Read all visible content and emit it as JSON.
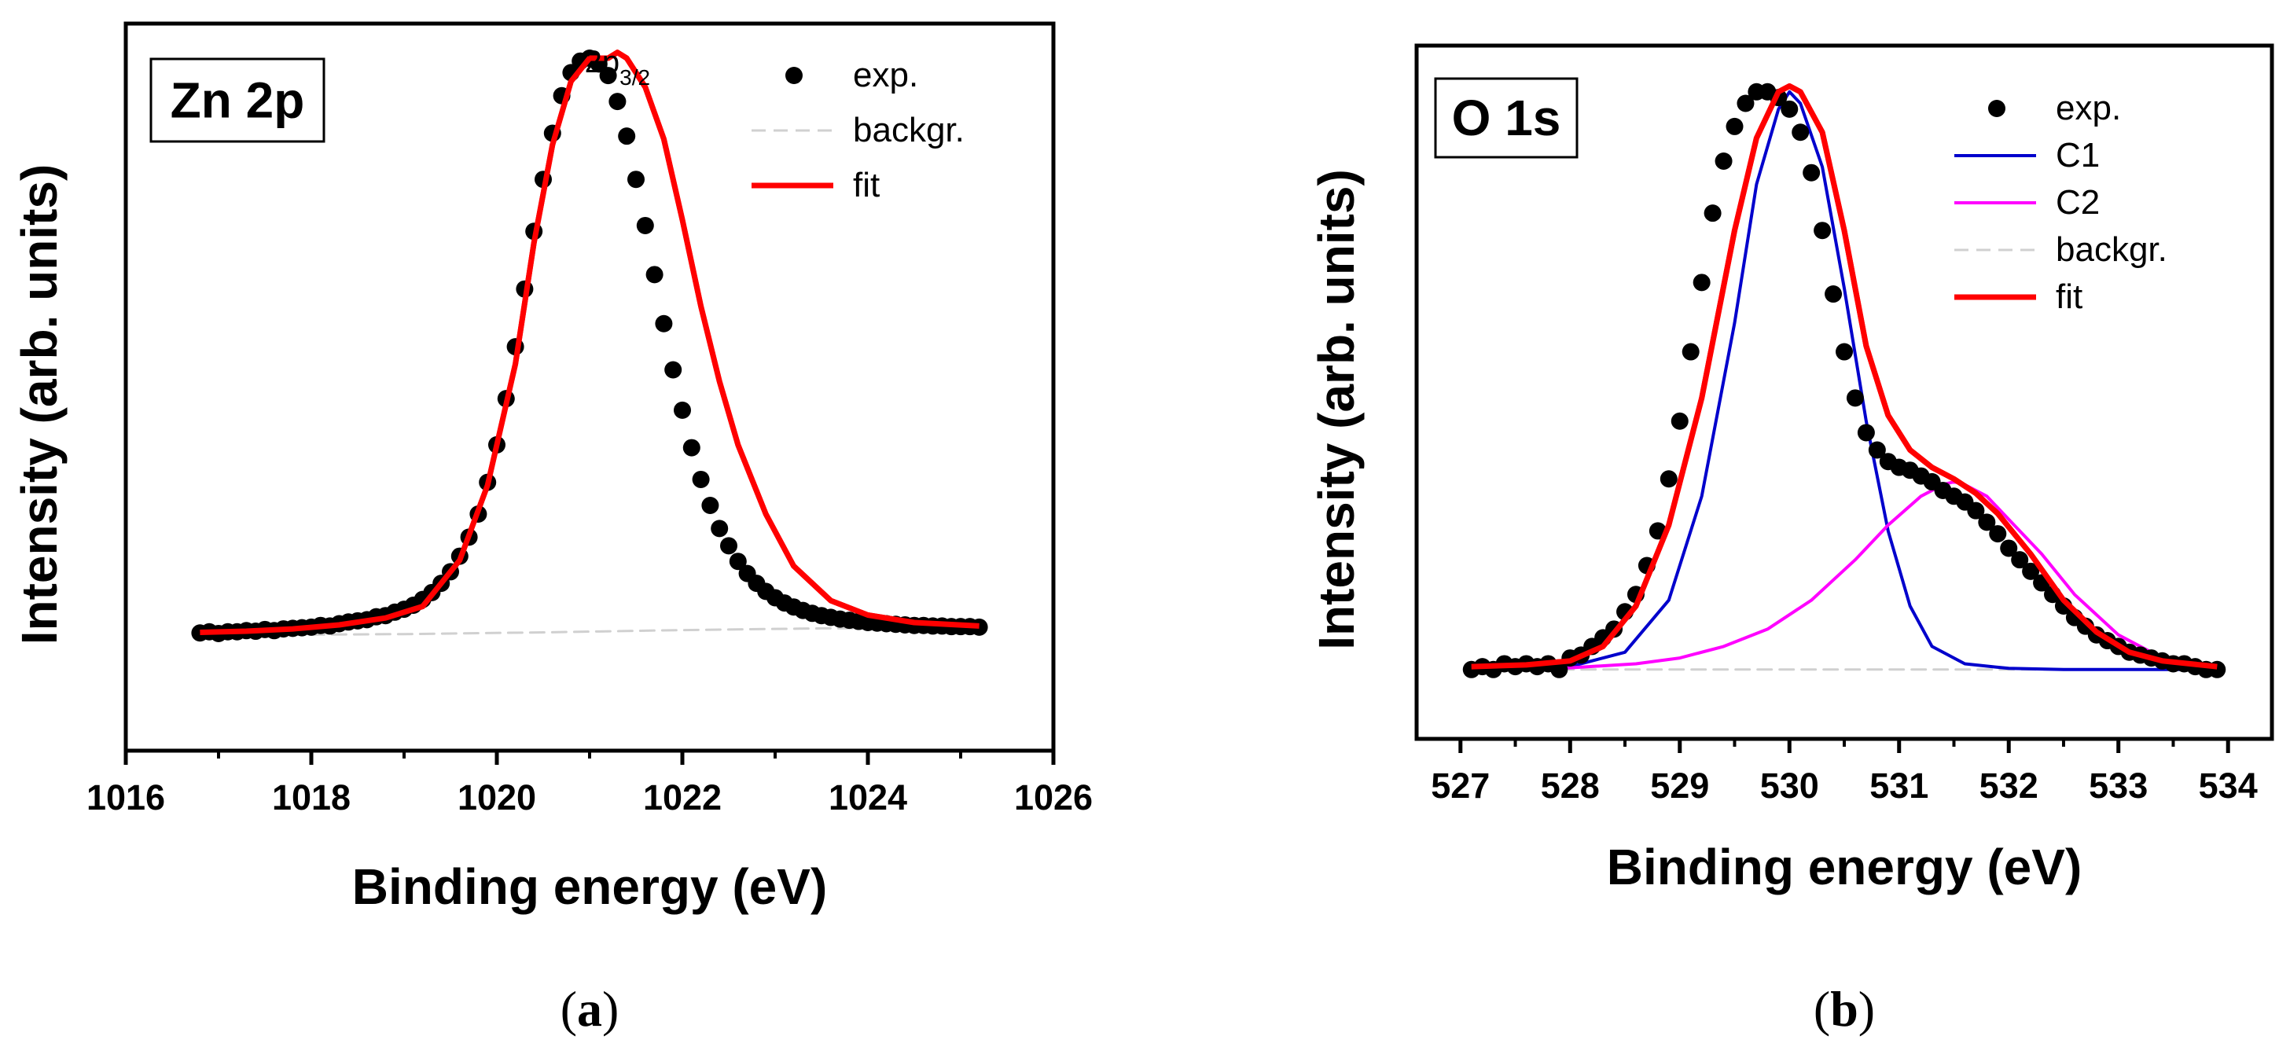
{
  "chart_data": [
    {
      "type": "line",
      "panel": "(a)",
      "caption_letter": "a",
      "title": "Zn 2p",
      "annotation": {
        "text": "2p",
        "sub": "3/2",
        "x": 1021.3
      },
      "xlabel": "Binding energy (eV)",
      "ylabel": "Intensity (arb. units)",
      "xlim": [
        1016,
        1026
      ],
      "ylim": [
        -0.2,
        1.06
      ],
      "xticks": [
        1016,
        1018,
        1020,
        1022,
        1024,
        1026
      ],
      "xtick_labels": [
        "1016",
        "1018",
        "1020",
        "1022",
        "1024",
        "1026"
      ],
      "legend_position": "top-right",
      "legend": [
        "exp.",
        "backgr.",
        "fit"
      ],
      "series": [
        {
          "name": "exp.",
          "kind": "scatter",
          "color": "#000000",
          "x": [
            1016.8,
            1016.9,
            1017.0,
            1017.1,
            1017.2,
            1017.3,
            1017.4,
            1017.5,
            1017.6,
            1017.7,
            1017.8,
            1017.9,
            1018.0,
            1018.1,
            1018.2,
            1018.3,
            1018.4,
            1018.5,
            1018.6,
            1018.7,
            1018.8,
            1018.9,
            1019.0,
            1019.1,
            1019.2,
            1019.3,
            1019.4,
            1019.5,
            1019.6,
            1019.7,
            1019.8,
            1019.9,
            1020.0,
            1020.1,
            1020.2,
            1020.3,
            1020.4,
            1020.5,
            1020.6,
            1020.7,
            1020.8,
            1020.9,
            1021.0,
            1021.1,
            1021.2,
            1021.3,
            1021.4,
            1021.5,
            1021.6,
            1021.7,
            1021.8,
            1021.9,
            1022.0,
            1022.1,
            1022.2,
            1022.3,
            1022.4,
            1022.5,
            1022.6,
            1022.7,
            1022.8,
            1022.9,
            1023.0,
            1023.1,
            1023.2,
            1023.3,
            1023.4,
            1023.5,
            1023.6,
            1023.7,
            1023.8,
            1023.9,
            1024.0,
            1024.1,
            1024.2,
            1024.3,
            1024.4,
            1024.5,
            1024.6,
            1024.7,
            1024.8,
            1024.9,
            1025.0,
            1025.1,
            1025.2
          ],
          "y": [
            0.004,
            0.006,
            0.003,
            0.006,
            0.006,
            0.008,
            0.007,
            0.01,
            0.008,
            0.011,
            0.012,
            0.013,
            0.014,
            0.017,
            0.016,
            0.02,
            0.023,
            0.025,
            0.027,
            0.032,
            0.034,
            0.04,
            0.045,
            0.052,
            0.062,
            0.074,
            0.09,
            0.11,
            0.137,
            0.17,
            0.21,
            0.265,
            0.33,
            0.41,
            0.5,
            0.6,
            0.7,
            0.79,
            0.87,
            0.935,
            0.975,
            0.995,
            1.0,
            0.99,
            0.97,
            0.925,
            0.865,
            0.79,
            0.71,
            0.625,
            0.54,
            0.46,
            0.39,
            0.325,
            0.27,
            0.225,
            0.185,
            0.155,
            0.128,
            0.107,
            0.09,
            0.076,
            0.065,
            0.056,
            0.049,
            0.043,
            0.038,
            0.034,
            0.031,
            0.028,
            0.026,
            0.024,
            0.022,
            0.021,
            0.02,
            0.019,
            0.018,
            0.017,
            0.017,
            0.016,
            0.016,
            0.015,
            0.015,
            0.015,
            0.014
          ]
        },
        {
          "name": "backgr.",
          "kind": "dashed",
          "color": "#d0d0d0",
          "x": [
            1016.8,
            1019.0,
            1020.5,
            1022.0,
            1023.5,
            1025.2
          ],
          "y": [
            0.0,
            0.002,
            0.005,
            0.009,
            0.012,
            0.013
          ]
        },
        {
          "name": "fit",
          "kind": "line",
          "color": "#ff0000",
          "x": [
            1016.8,
            1017.3,
            1017.8,
            1018.3,
            1018.8,
            1019.2,
            1019.6,
            1019.9,
            1020.2,
            1020.4,
            1020.6,
            1020.8,
            1021.0,
            1021.2,
            1021.3,
            1021.4,
            1021.6,
            1021.8,
            1022.0,
            1022.2,
            1022.4,
            1022.6,
            1022.9,
            1023.2,
            1023.6,
            1024.0,
            1024.5,
            1025.2
          ],
          "y": [
            0.005,
            0.007,
            0.011,
            0.018,
            0.03,
            0.05,
            0.13,
            0.26,
            0.47,
            0.68,
            0.85,
            0.96,
            1.0,
            1.0,
            1.01,
            1.0,
            0.95,
            0.86,
            0.72,
            0.57,
            0.44,
            0.33,
            0.21,
            0.12,
            0.06,
            0.035,
            0.022,
            0.016
          ]
        }
      ]
    },
    {
      "type": "line",
      "panel": "(b)",
      "caption_letter": "b",
      "title": "O 1s",
      "xlabel": "Binding energy (eV)",
      "ylabel": "Intensity (arb. units)",
      "xlim": [
        526.6,
        534.4
      ],
      "ylim": [
        -0.12,
        1.08
      ],
      "xticks": [
        527,
        528,
        529,
        530,
        531,
        532,
        533,
        534
      ],
      "xtick_labels": [
        "527",
        "528",
        "529",
        "530",
        "531",
        "532",
        "533",
        "534"
      ],
      "legend_position": "top-right",
      "legend": [
        "exp.",
        "C1",
        "C2",
        "backgr.",
        "fit"
      ],
      "series": [
        {
          "name": "exp.",
          "kind": "scatter",
          "color": "#000000",
          "x": [
            527.1,
            527.2,
            527.3,
            527.4,
            527.5,
            527.6,
            527.7,
            527.8,
            527.9,
            528.0,
            528.1,
            528.2,
            528.3,
            528.4,
            528.5,
            528.6,
            528.7,
            528.8,
            528.9,
            529.0,
            529.1,
            529.2,
            529.3,
            529.4,
            529.5,
            529.6,
            529.7,
            529.8,
            529.9,
            530.0,
            530.1,
            530.2,
            530.3,
            530.4,
            530.5,
            530.6,
            530.7,
            530.8,
            530.9,
            531.0,
            531.1,
            531.2,
            531.3,
            531.4,
            531.5,
            531.6,
            531.7,
            531.8,
            531.9,
            532.0,
            532.1,
            532.2,
            532.3,
            532.4,
            532.5,
            532.6,
            532.7,
            532.8,
            532.9,
            533.0,
            533.1,
            533.2,
            533.3,
            533.4,
            533.5,
            533.6,
            533.7,
            533.8,
            533.9
          ],
          "y": [
            0.0,
            0.005,
            0.0,
            0.01,
            0.005,
            0.01,
            0.005,
            0.01,
            0.0,
            0.02,
            0.025,
            0.04,
            0.055,
            0.07,
            0.1,
            0.13,
            0.18,
            0.24,
            0.33,
            0.43,
            0.55,
            0.67,
            0.79,
            0.88,
            0.94,
            0.98,
            1.0,
            1.0,
            0.99,
            0.97,
            0.93,
            0.86,
            0.76,
            0.65,
            0.55,
            0.47,
            0.41,
            0.38,
            0.36,
            0.35,
            0.345,
            0.335,
            0.325,
            0.31,
            0.3,
            0.29,
            0.275,
            0.255,
            0.235,
            0.21,
            0.19,
            0.17,
            0.15,
            0.13,
            0.11,
            0.09,
            0.075,
            0.06,
            0.05,
            0.04,
            0.03,
            0.025,
            0.02,
            0.015,
            0.01,
            0.01,
            0.005,
            0.0,
            0.0
          ]
        },
        {
          "name": "C1",
          "kind": "line",
          "color": "#0000cc",
          "x": [
            527.1,
            528.0,
            528.5,
            528.9,
            529.2,
            529.5,
            529.7,
            529.9,
            530.0,
            530.1,
            530.3,
            530.5,
            530.7,
            530.9,
            531.1,
            531.3,
            531.6,
            532.0,
            532.5,
            533.0,
            533.9
          ],
          "y": [
            0.0,
            0.005,
            0.03,
            0.12,
            0.3,
            0.6,
            0.84,
            0.97,
            1.0,
            0.98,
            0.87,
            0.66,
            0.43,
            0.24,
            0.11,
            0.04,
            0.01,
            0.002,
            0.0,
            0.0,
            0.0
          ]
        },
        {
          "name": "C2",
          "kind": "line",
          "color": "#ff00ff",
          "x": [
            527.1,
            528.0,
            528.6,
            529.0,
            529.4,
            529.8,
            530.2,
            530.6,
            530.9,
            531.2,
            531.4,
            531.5,
            531.6,
            531.8,
            532.0,
            532.3,
            532.6,
            533.0,
            533.4,
            533.9
          ],
          "y": [
            0.0,
            0.003,
            0.01,
            0.02,
            0.04,
            0.07,
            0.12,
            0.19,
            0.25,
            0.3,
            0.32,
            0.325,
            0.32,
            0.3,
            0.26,
            0.2,
            0.13,
            0.06,
            0.02,
            0.005
          ]
        },
        {
          "name": "backgr.",
          "kind": "dashed",
          "color": "#d0d0d0",
          "x": [
            527.1,
            533.9
          ],
          "y": [
            0.0,
            0.0
          ]
        },
        {
          "name": "fit",
          "kind": "line",
          "color": "#ff0000",
          "x": [
            527.1,
            527.6,
            528.0,
            528.3,
            528.6,
            528.9,
            529.2,
            529.5,
            529.7,
            529.9,
            530.0,
            530.1,
            530.3,
            530.5,
            530.7,
            530.9,
            531.1,
            531.3,
            531.5,
            531.7,
            531.9,
            532.2,
            532.5,
            532.8,
            533.1,
            533.4,
            533.9
          ],
          "y": [
            0.005,
            0.008,
            0.015,
            0.04,
            0.11,
            0.25,
            0.47,
            0.76,
            0.92,
            1.0,
            1.01,
            1.0,
            0.93,
            0.76,
            0.56,
            0.44,
            0.38,
            0.35,
            0.33,
            0.305,
            0.27,
            0.2,
            0.12,
            0.065,
            0.03,
            0.015,
            0.005
          ]
        }
      ]
    }
  ]
}
